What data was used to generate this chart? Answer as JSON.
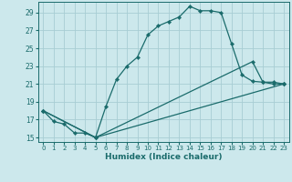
{
  "xlabel": "Humidex (Indice chaleur)",
  "bg_color": "#cce8ec",
  "grid_color": "#a8cdd4",
  "line_color": "#1a6b6b",
  "xlim": [
    -0.5,
    23.5
  ],
  "ylim": [
    14.5,
    30.2
  ],
  "xticks": [
    0,
    1,
    2,
    3,
    4,
    5,
    6,
    7,
    8,
    9,
    10,
    11,
    12,
    13,
    14,
    15,
    16,
    17,
    18,
    19,
    20,
    21,
    22,
    23
  ],
  "yticks": [
    15,
    17,
    19,
    21,
    23,
    25,
    27,
    29
  ],
  "line1_x": [
    0,
    1,
    2,
    3,
    4,
    5,
    6,
    7,
    8,
    9,
    10,
    11,
    12,
    13,
    14,
    15,
    16,
    17,
    18,
    19,
    20,
    21,
    22,
    23
  ],
  "line1_y": [
    18.0,
    16.8,
    16.5,
    15.5,
    15.5,
    15.0,
    18.5,
    21.5,
    23.0,
    24.0,
    26.5,
    27.5,
    28.0,
    28.5,
    29.7,
    29.2,
    29.2,
    29.0,
    25.5,
    22.0,
    21.3,
    21.2,
    21.0,
    21.0
  ],
  "line2_x": [
    0,
    5,
    20,
    21,
    22,
    23
  ],
  "line2_y": [
    18.0,
    15.0,
    23.5,
    21.2,
    21.2,
    21.0
  ],
  "line3_x": [
    0,
    5,
    23
  ],
  "line3_y": [
    18.0,
    15.0,
    21.0
  ]
}
